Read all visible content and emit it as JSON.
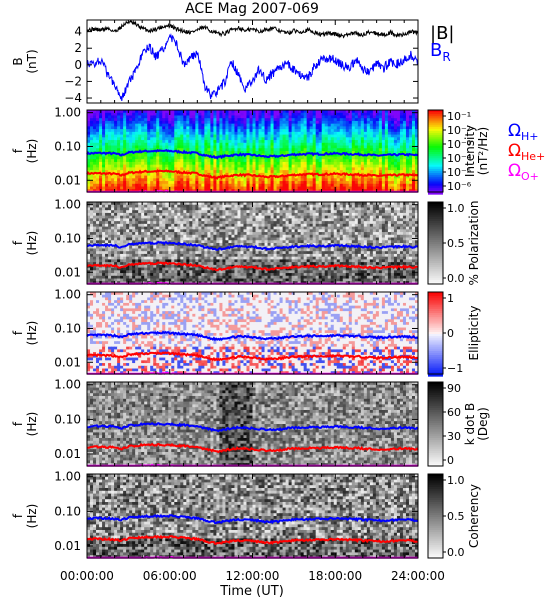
{
  "title": "ACE Mag 2007-069",
  "x_axis": {
    "label": "Time (UT)",
    "tick_labels": [
      "00:00:00",
      "06:00:00",
      "12:00:00",
      "18:00:00",
      "24:00:00"
    ],
    "range_hours": [
      0,
      24
    ]
  },
  "colors": {
    "B_total": "#000000",
    "B_R": "#0000ff",
    "omega_H": "#0000ff",
    "omega_He": "#ff0000",
    "omega_O": "#ff00ff"
  },
  "chart_data": [
    {
      "id": "field",
      "type": "line",
      "ylabel": "B",
      "yunit": "(nT)",
      "ylim": [
        -4.6,
        5.4
      ],
      "yticks": [
        "4",
        "2",
        "0",
        "−2",
        "−4"
      ],
      "ytick_values": [
        4,
        2,
        0,
        -2,
        -4
      ],
      "legend": [
        "|B|",
        "B_R"
      ],
      "legend_main": [
        "|B|",
        "B"
      ],
      "legend_sub": [
        "",
        "R"
      ],
      "series": [
        {
          "name": "|B|",
          "x_hours": [
            0,
            0.5,
            1,
            1.5,
            2,
            2.5,
            3,
            3.5,
            4,
            4.5,
            5,
            5.5,
            6,
            6.5,
            7,
            7.5,
            8,
            8.5,
            9,
            9.5,
            10,
            10.5,
            11,
            11.5,
            12,
            12.5,
            13,
            13.5,
            14,
            14.5,
            15,
            15.5,
            16,
            16.5,
            17,
            17.5,
            18,
            18.5,
            19,
            19.5,
            20,
            20.5,
            21,
            21.5,
            22,
            22.5,
            23,
            23.5,
            24
          ],
          "values": [
            4.2,
            4.3,
            4.2,
            4.4,
            4.0,
            4.6,
            5.2,
            4.9,
            4.4,
            4.1,
            4.3,
            4.6,
            4.7,
            4.3,
            4.1,
            3.9,
            4.2,
            4.5,
            4.1,
            3.7,
            3.8,
            4.2,
            4.5,
            4.1,
            4.3,
            4.0,
            4.3,
            4.4,
            4.1,
            3.8,
            4.1,
            4.0,
            4.2,
            3.9,
            3.6,
            3.8,
            3.7,
            3.5,
            3.7,
            3.8,
            3.6,
            4.0,
            3.8,
            3.6,
            3.9,
            3.5,
            3.7,
            4.0,
            3.8
          ]
        },
        {
          "name": "B_R",
          "x_hours": [
            0,
            0.5,
            1,
            1.5,
            2,
            2.5,
            3,
            3.5,
            4,
            4.5,
            5,
            5.5,
            6,
            6.5,
            7,
            7.5,
            8,
            8.5,
            9,
            9.5,
            10,
            10.5,
            11,
            11.5,
            12,
            12.5,
            13,
            13.5,
            14,
            14.5,
            15,
            15.5,
            16,
            16.5,
            17,
            17.5,
            18,
            18.5,
            19,
            19.5,
            20,
            20.5,
            21,
            21.5,
            22,
            22.5,
            23,
            23.5,
            24
          ],
          "values": [
            0.0,
            0.2,
            0.6,
            -1.2,
            -2.2,
            -4.0,
            -2.2,
            -1.0,
            1.2,
            2.2,
            1.0,
            1.8,
            3.4,
            2.6,
            0.0,
            0.8,
            1.6,
            -2.4,
            -3.8,
            -3.2,
            -2.0,
            0.4,
            -1.2,
            -3.0,
            -1.8,
            -0.6,
            -1.8,
            -1.0,
            -0.2,
            0.2,
            -0.6,
            -1.2,
            -1.6,
            -0.2,
            0.5,
            0.8,
            0.6,
            0.0,
            -0.4,
            0.6,
            -0.6,
            -0.8,
            0.2,
            -0.4,
            0.4,
            0.1,
            0.7,
            1.2,
            0.5
          ]
        }
      ]
    },
    {
      "id": "intensity",
      "type": "heatmap",
      "ylabel": "f",
      "yunit": "(Hz)",
      "yscale": "log",
      "ylim": [
        0.0045,
        1.2
      ],
      "yticks": [
        "1.00",
        "0.10",
        "0.01"
      ],
      "ytick_values": [
        1,
        0.1,
        0.01
      ],
      "colorbar": {
        "label": "Intensity",
        "unit": "(nT²/Hz)",
        "tick_labels": [
          "10⁻¹",
          "10⁻²",
          "10⁻³",
          "10⁻⁴",
          "10⁻⁵",
          "10⁻⁶"
        ],
        "colormap": "rainbow"
      },
      "legend": [
        "Ω_H+",
        "Ω_He+",
        "Ω_O+"
      ],
      "legend_main": [
        "Ω",
        "Ω",
        "Ω"
      ],
      "legend_sub": [
        "H+",
        "He+",
        "O+"
      ]
    },
    {
      "id": "polarization",
      "type": "heatmap",
      "ylabel": "f",
      "yunit": "(Hz)",
      "yscale": "log",
      "ylim": [
        0.0045,
        1.2
      ],
      "yticks": [
        "1.00",
        "0.10",
        "0.01"
      ],
      "ytick_values": [
        1,
        0.1,
        0.01
      ],
      "colorbar": {
        "label": "% Polarization",
        "tick_labels": [
          "1.0",
          "0.5",
          "0.0"
        ],
        "colormap": "gray"
      }
    },
    {
      "id": "ellipticity",
      "type": "heatmap",
      "ylabel": "f",
      "yunit": "(Hz)",
      "yscale": "log",
      "ylim": [
        0.0045,
        1.2
      ],
      "yticks": [
        "1.00",
        "0.10",
        "0.01"
      ],
      "ytick_values": [
        1,
        0.1,
        0.01
      ],
      "colorbar": {
        "label": "Ellipticity",
        "tick_labels": [
          "1",
          "0",
          "−1"
        ],
        "colormap": "blue-white-red"
      }
    },
    {
      "id": "kdotb",
      "type": "heatmap",
      "ylabel": "f",
      "yunit": "(Hz)",
      "yscale": "log",
      "ylim": [
        0.0045,
        1.2
      ],
      "yticks": [
        "1.00",
        "0.10",
        "0.01"
      ],
      "ytick_values": [
        1,
        0.1,
        0.01
      ],
      "colorbar": {
        "label": "k dot B",
        "unit": "(Deg)",
        "tick_labels": [
          "90",
          "60",
          "30",
          "0"
        ],
        "colormap": "gray"
      }
    },
    {
      "id": "coherency",
      "type": "heatmap",
      "ylabel": "f",
      "yunit": "(Hz)",
      "yscale": "log",
      "ylim": [
        0.0045,
        1.2
      ],
      "yticks": [
        "1.00",
        "0.10",
        "0.01"
      ],
      "ytick_values": [
        1,
        0.1,
        0.01
      ],
      "colorbar": {
        "label": "Coherency",
        "tick_labels": [
          "1.0",
          "0.5",
          "0.0"
        ],
        "colormap": "gray"
      }
    }
  ],
  "gyrofrequency_lines": {
    "x_hours": [
      0,
      1,
      2,
      2.5,
      3,
      4,
      5,
      6,
      7,
      8,
      8.5,
      9,
      9.5,
      10,
      11,
      12,
      13,
      14,
      15,
      16,
      17,
      18,
      19,
      20,
      21,
      22,
      23,
      24
    ],
    "omega_H_hz": [
      0.062,
      0.064,
      0.062,
      0.055,
      0.066,
      0.072,
      0.074,
      0.074,
      0.068,
      0.063,
      0.056,
      0.05,
      0.048,
      0.052,
      0.058,
      0.056,
      0.05,
      0.052,
      0.058,
      0.06,
      0.06,
      0.062,
      0.06,
      0.058,
      0.054,
      0.056,
      0.058,
      0.055
    ],
    "omega_He_hz": [
      0.016,
      0.016,
      0.0155,
      0.014,
      0.0165,
      0.018,
      0.0185,
      0.0185,
      0.017,
      0.0158,
      0.014,
      0.0125,
      0.012,
      0.013,
      0.0145,
      0.014,
      0.0125,
      0.013,
      0.0145,
      0.015,
      0.015,
      0.0155,
      0.015,
      0.0145,
      0.0135,
      0.014,
      0.0145,
      0.0138
    ],
    "omega_O_hz": [
      0.0041,
      0.0041,
      0.0039,
      0.0035,
      0.0041,
      0.0045,
      0.0046,
      0.0046,
      0.0043,
      0.004,
      0.0035,
      0.0031,
      0.003,
      0.0033,
      0.0036,
      0.0035,
      0.0031,
      0.0033,
      0.0036,
      0.0038,
      0.0038,
      0.0039,
      0.0038,
      0.0036,
      0.0034,
      0.0035,
      0.0036,
      0.0035
    ]
  }
}
